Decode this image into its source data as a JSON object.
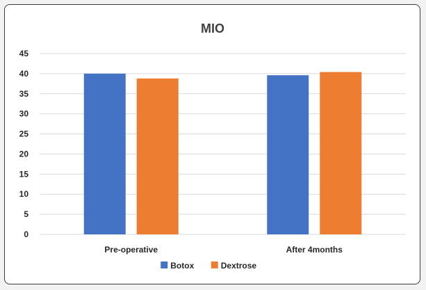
{
  "chart_data": {
    "type": "bar",
    "title": "MIO",
    "xlabel": "",
    "ylabel": "",
    "categories": [
      "Pre-operative",
      "After 4months"
    ],
    "series": [
      {
        "name": "Botox",
        "color": "#4472c4",
        "values": [
          40,
          39.6
        ]
      },
      {
        "name": "Dextrose",
        "color": "#ed7d31",
        "values": [
          38.8,
          40.4
        ]
      }
    ],
    "ylim": [
      0,
      45
    ],
    "yticks": [
      0,
      5,
      10,
      15,
      20,
      25,
      30,
      35,
      40,
      45
    ],
    "grid": true,
    "legend": "bottom"
  }
}
